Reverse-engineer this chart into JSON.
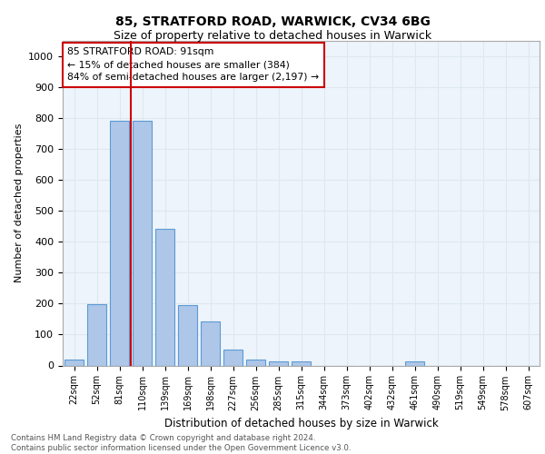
{
  "title1": "85, STRATFORD ROAD, WARWICK, CV34 6BG",
  "title2": "Size of property relative to detached houses in Warwick",
  "xlabel": "Distribution of detached houses by size in Warwick",
  "ylabel": "Number of detached properties",
  "footer": "Contains HM Land Registry data © Crown copyright and database right 2024.\nContains public sector information licensed under the Open Government Licence v3.0.",
  "bar_labels": [
    "22sqm",
    "52sqm",
    "81sqm",
    "110sqm",
    "139sqm",
    "169sqm",
    "198sqm",
    "227sqm",
    "256sqm",
    "285sqm",
    "315sqm",
    "344sqm",
    "373sqm",
    "402sqm",
    "432sqm",
    "461sqm",
    "490sqm",
    "519sqm",
    "549sqm",
    "578sqm",
    "607sqm"
  ],
  "bar_values": [
    18,
    197,
    793,
    793,
    443,
    196,
    143,
    50,
    18,
    12,
    12,
    0,
    0,
    0,
    0,
    12,
    0,
    0,
    0,
    0,
    0
  ],
  "bar_color": "#aec6e8",
  "bar_edge_color": "#5b9bd5",
  "grid_color": "#dde8f0",
  "background_color": "#eef4fb",
  "property_line_x": 2.5,
  "annotation_text": "85 STRATFORD ROAD: 91sqm\n← 15% of detached houses are smaller (384)\n84% of semi-detached houses are larger (2,197) →",
  "annotation_box_color": "#ffffff",
  "annotation_edge_color": "#cc0000",
  "property_line_color": "#cc0000",
  "ylim": [
    0,
    1050
  ],
  "yticks": [
    0,
    100,
    200,
    300,
    400,
    500,
    600,
    700,
    800,
    900,
    1000
  ]
}
